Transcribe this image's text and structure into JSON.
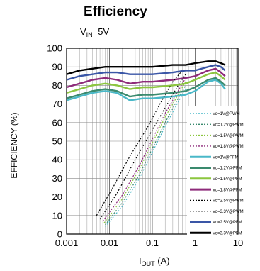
{
  "header": {
    "title": "Efficiency",
    "cond_prefix": "V",
    "cond_sub": "IN",
    "cond_suffix": "=5V"
  },
  "axes": {
    "ylabel": "EFFICIENCY (%)",
    "xlabel_prefix": "I",
    "xlabel_sub": "OUT",
    "xlabel_suffix": " (A)"
  },
  "chart_data": {
    "type": "line",
    "title": "Efficiency",
    "subtitle": "VIN=5V",
    "xlabel": "IOUT (A)",
    "ylabel": "EFFICIENCY (%)",
    "xscale": "log",
    "xlim": [
      0.001,
      10
    ],
    "ylim": [
      0,
      100
    ],
    "xticks": [
      "0.001",
      "0.01",
      "0.1",
      "1",
      "10"
    ],
    "yticks": [
      "0",
      "10",
      "20",
      "30",
      "40",
      "50",
      "60",
      "70",
      "80",
      "90",
      "100"
    ],
    "grid": true,
    "legend_position": "right",
    "series": [
      {
        "name": "Vo=1V@PWM",
        "color": "#4ab8c8",
        "dash": true,
        "points": [
          [
            0.008,
            4
          ],
          [
            0.02,
            15
          ],
          [
            0.05,
            30
          ],
          [
            0.1,
            44
          ],
          [
            0.2,
            58
          ],
          [
            0.4,
            71
          ],
          [
            0.6,
            78
          ]
        ]
      },
      {
        "name": "Vo=1.2V@PWM",
        "color": "#3a8a6e",
        "dash": true,
        "points": [
          [
            0.008,
            5
          ],
          [
            0.02,
            17
          ],
          [
            0.05,
            32
          ],
          [
            0.1,
            46
          ],
          [
            0.2,
            60
          ],
          [
            0.4,
            73
          ],
          [
            0.6,
            80
          ]
        ]
      },
      {
        "name": "Vo=1.5V@PWM",
        "color": "#8cc63f",
        "dash": true,
        "points": [
          [
            0.0075,
            6
          ],
          [
            0.02,
            19
          ],
          [
            0.05,
            35
          ],
          [
            0.1,
            49
          ],
          [
            0.2,
            63
          ],
          [
            0.4,
            75
          ],
          [
            0.6,
            82
          ]
        ]
      },
      {
        "name": "Vo=1.8V@PWM",
        "color": "#8e2a7a",
        "dash": true,
        "points": [
          [
            0.007,
            7
          ],
          [
            0.02,
            21
          ],
          [
            0.05,
            37
          ],
          [
            0.1,
            51
          ],
          [
            0.2,
            65
          ],
          [
            0.4,
            77
          ],
          [
            0.6,
            84
          ]
        ]
      },
      {
        "name": "Vo=1V@PFM",
        "color": "#4ab8c8",
        "dash": false,
        "points": [
          [
            0.001,
            72
          ],
          [
            0.002,
            74
          ],
          [
            0.004,
            76
          ],
          [
            0.008,
            77
          ],
          [
            0.015,
            76
          ],
          [
            0.03,
            72
          ],
          [
            0.06,
            73
          ],
          [
            0.1,
            73
          ],
          [
            0.3,
            74
          ],
          [
            0.6,
            75
          ],
          [
            1,
            77
          ],
          [
            2,
            82
          ],
          [
            3,
            83
          ],
          [
            4,
            81
          ],
          [
            5,
            78
          ]
        ]
      },
      {
        "name": "Vo=1.2V@PFM",
        "color": "#3a8a6e",
        "dash": false,
        "points": [
          [
            0.001,
            73
          ],
          [
            0.002,
            75
          ],
          [
            0.004,
            77
          ],
          [
            0.008,
            78
          ],
          [
            0.015,
            77
          ],
          [
            0.03,
            74
          ],
          [
            0.06,
            75
          ],
          [
            0.1,
            75
          ],
          [
            0.3,
            76
          ],
          [
            0.6,
            77
          ],
          [
            1,
            79
          ],
          [
            2,
            83
          ],
          [
            3,
            84
          ],
          [
            4,
            82
          ],
          [
            5,
            80
          ]
        ]
      },
      {
        "name": "Vo=1.5V@PFM",
        "color": "#8cc63f",
        "dash": false,
        "points": [
          [
            0.001,
            76
          ],
          [
            0.002,
            78
          ],
          [
            0.004,
            80
          ],
          [
            0.008,
            81
          ],
          [
            0.015,
            80
          ],
          [
            0.03,
            78
          ],
          [
            0.06,
            79
          ],
          [
            0.1,
            79
          ],
          [
            0.3,
            80
          ],
          [
            0.6,
            81
          ],
          [
            1,
            83
          ],
          [
            2,
            86
          ],
          [
            3,
            87
          ],
          [
            4,
            85
          ],
          [
            5,
            83
          ]
        ]
      },
      {
        "name": "Vo=1.8V@PFM",
        "color": "#8e2a7a",
        "dash": false,
        "points": [
          [
            0.001,
            79
          ],
          [
            0.002,
            81
          ],
          [
            0.004,
            83
          ],
          [
            0.008,
            84
          ],
          [
            0.015,
            83
          ],
          [
            0.03,
            81
          ],
          [
            0.06,
            82
          ],
          [
            0.1,
            82
          ],
          [
            0.3,
            83
          ],
          [
            0.6,
            84
          ],
          [
            1,
            85
          ],
          [
            2,
            88
          ],
          [
            3,
            89
          ],
          [
            4,
            87
          ],
          [
            5,
            85
          ]
        ]
      },
      {
        "name": "Vo=2.5V@PWM",
        "color": "#000000",
        "dash": true,
        "points": [
          [
            0.006,
            8
          ],
          [
            0.015,
            22
          ],
          [
            0.04,
            40
          ],
          [
            0.1,
            56
          ],
          [
            0.2,
            68
          ],
          [
            0.4,
            80
          ],
          [
            0.6,
            86
          ]
        ]
      },
      {
        "name": "Vo=3.3V@PWM",
        "color": "#000000",
        "dash": true,
        "points": [
          [
            0.005,
            10
          ],
          [
            0.012,
            25
          ],
          [
            0.03,
            42
          ],
          [
            0.08,
            58
          ],
          [
            0.15,
            70
          ],
          [
            0.3,
            82
          ],
          [
            0.5,
            88
          ]
        ]
      },
      {
        "name": "Vo=2.5V@PFM",
        "color": "#3a56a6",
        "dash": false,
        "points": [
          [
            0.001,
            83
          ],
          [
            0.002,
            85
          ],
          [
            0.004,
            86
          ],
          [
            0.008,
            87
          ],
          [
            0.015,
            87
          ],
          [
            0.03,
            86
          ],
          [
            0.06,
            86
          ],
          [
            0.1,
            86
          ],
          [
            0.3,
            87
          ],
          [
            0.6,
            88
          ],
          [
            1,
            88
          ],
          [
            2,
            90
          ],
          [
            3,
            91
          ],
          [
            4,
            90
          ],
          [
            5,
            88
          ]
        ]
      },
      {
        "name": "Vo=3.3V@PFM",
        "color": "#000000",
        "dash": false,
        "points": [
          [
            0.001,
            86
          ],
          [
            0.002,
            88
          ],
          [
            0.004,
            89
          ],
          [
            0.008,
            90
          ],
          [
            0.015,
            90
          ],
          [
            0.03,
            90
          ],
          [
            0.06,
            90
          ],
          [
            0.1,
            90
          ],
          [
            0.3,
            91
          ],
          [
            0.6,
            91
          ],
          [
            1,
            92
          ],
          [
            2,
            93
          ],
          [
            3,
            93
          ],
          [
            4,
            92
          ],
          [
            5,
            91
          ]
        ]
      }
    ]
  }
}
